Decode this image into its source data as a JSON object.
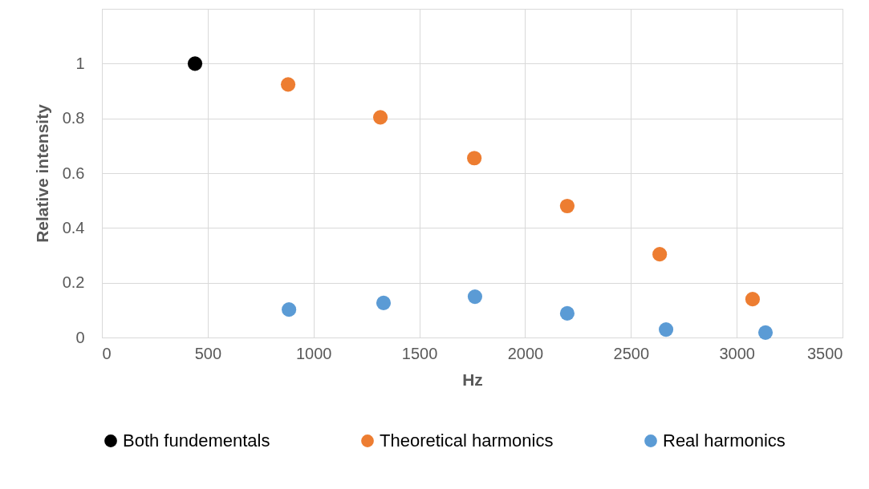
{
  "chart_data": {
    "type": "scatter",
    "xlabel": "Hz",
    "ylabel": "Relative intensity",
    "xlim": [
      0,
      3500
    ],
    "xticks": [
      0,
      500,
      1000,
      1500,
      2000,
      2500,
      3000,
      3500
    ],
    "ylim": [
      0,
      1.2
    ],
    "yticks": [
      0,
      0.2,
      0.4,
      0.6,
      0.8,
      1,
      {
        "value": 1.2,
        "label": null
      }
    ],
    "grid": true,
    "legend": "bottom",
    "marker": "circle",
    "series": [
      {
        "name": "Both fundementals",
        "color": "#000000",
        "x": [
          440
        ],
        "values": [
          1
        ]
      },
      {
        "name": "Theoretical harmonics",
        "color": "#ed7d31",
        "x": [
          880,
          1316,
          1760,
          2199,
          2636,
          3075
        ],
        "values": [
          0.924,
          0.804,
          0.655,
          0.48,
          0.304,
          0.14
        ]
      },
      {
        "name": "Real harmonics",
        "color": "#5b9bd5",
        "x": [
          884,
          1331,
          1763,
          2199,
          2666,
          3136
        ],
        "values": [
          0.102,
          0.126,
          0.149,
          0.088,
          0.029,
          0.018
        ]
      }
    ]
  }
}
